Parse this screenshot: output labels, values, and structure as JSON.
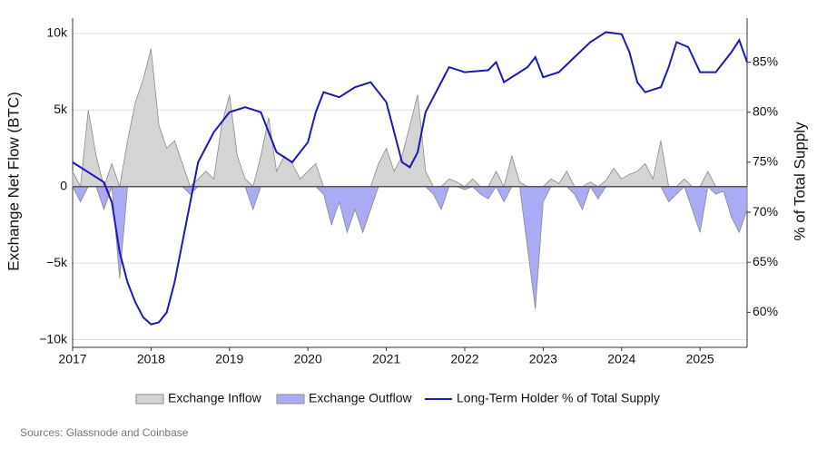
{
  "chart_data": {
    "type": "area-line",
    "y_label": "Exchange Net Flow (BTC)",
    "y2_label": "% of Total Supply",
    "source": "Sources: Glassnode and Coinbase",
    "xlim": [
      2017,
      2025.6
    ],
    "xticks": [
      2017,
      2018,
      2019,
      2020,
      2021,
      2022,
      2023,
      2024,
      2025
    ],
    "ylim": [
      -10500,
      11000
    ],
    "yticks": [
      {
        "value": -10000,
        "label": "−10k"
      },
      {
        "value": -5000,
        "label": "−5k"
      },
      0,
      {
        "value": 5000,
        "label": "5k"
      },
      {
        "value": 10000,
        "label": "10k"
      }
    ],
    "y2lim": [
      56.5,
      89.4
    ],
    "y2ticks": [
      {
        "value": 60,
        "label": "60%"
      },
      {
        "value": 65,
        "label": "65%"
      },
      {
        "value": 70,
        "label": "70%"
      },
      {
        "value": 75,
        "label": "75%"
      },
      {
        "value": 80,
        "label": "80%"
      },
      {
        "value": 85,
        "label": "85%"
      }
    ],
    "grid": true,
    "legend": "bottom",
    "x": [
      2017.0,
      2017.1,
      2017.2,
      2017.3,
      2017.4,
      2017.5,
      2017.6,
      2017.7,
      2017.8,
      2017.9,
      2018.0,
      2018.1,
      2018.2,
      2018.3,
      2018.4,
      2018.5,
      2018.6,
      2018.7,
      2018.8,
      2018.9,
      2019.0,
      2019.1,
      2019.2,
      2019.3,
      2019.4,
      2019.5,
      2019.6,
      2019.7,
      2019.8,
      2019.9,
      2020.0,
      2020.1,
      2020.2,
      2020.3,
      2020.4,
      2020.5,
      2020.6,
      2020.7,
      2020.8,
      2020.9,
      2021.0,
      2021.1,
      2021.2,
      2021.3,
      2021.4,
      2021.5,
      2021.6,
      2021.7,
      2021.8,
      2021.9,
      2022.0,
      2022.1,
      2022.2,
      2022.3,
      2022.4,
      2022.5,
      2022.6,
      2022.7,
      2022.8,
      2022.9,
      2023.0,
      2023.1,
      2023.2,
      2023.3,
      2023.4,
      2023.5,
      2023.6,
      2023.7,
      2023.8,
      2023.9,
      2024.0,
      2024.1,
      2024.2,
      2024.3,
      2024.4,
      2024.5,
      2024.6,
      2024.7,
      2024.8,
      2024.9,
      2025.0,
      2025.1,
      2025.2,
      2025.3,
      2025.4,
      2025.5,
      2025.6
    ],
    "series": [
      {
        "name": "Exchange Inflow",
        "kind": "area",
        "color": "#d4d4d4",
        "values": [
          1000,
          0,
          5000,
          2000,
          0,
          1500,
          0,
          3000,
          5500,
          7000,
          9000,
          4000,
          2500,
          3000,
          1500,
          0,
          500,
          1000,
          500,
          4000,
          6000,
          2000,
          500,
          0,
          2000,
          4500,
          1000,
          2000,
          1500,
          500,
          1000,
          1500,
          0,
          0,
          0,
          0,
          0,
          0,
          0,
          1500,
          2500,
          1000,
          2000,
          4000,
          6000,
          1000,
          0,
          0,
          500,
          300,
          0,
          500,
          0,
          0,
          1000,
          0,
          2000,
          300,
          0,
          0,
          0,
          500,
          200,
          1000,
          0,
          0,
          300,
          0,
          400,
          1200,
          500,
          800,
          1000,
          1500,
          500,
          3000,
          0,
          0,
          500,
          0,
          0,
          1000,
          0,
          0,
          0,
          0,
          0
        ]
      },
      {
        "name": "Exchange Outflow",
        "kind": "area",
        "color": "#aaaaf5",
        "values": [
          0,
          -1000,
          0,
          0,
          -1500,
          0,
          -6000,
          0,
          0,
          0,
          0,
          0,
          0,
          0,
          0,
          -500,
          0,
          0,
          0,
          0,
          0,
          0,
          0,
          -1500,
          0,
          0,
          0,
          0,
          0,
          0,
          0,
          0,
          -500,
          -2500,
          -1000,
          -3000,
          -1500,
          -3000,
          -1500,
          0,
          0,
          0,
          0,
          0,
          0,
          0,
          -500,
          -1500,
          0,
          0,
          -200,
          0,
          -500,
          -800,
          0,
          -1000,
          0,
          0,
          -4000,
          -8000,
          -1000,
          0,
          0,
          0,
          -500,
          -1500,
          0,
          -800,
          0,
          0,
          0,
          0,
          0,
          0,
          0,
          0,
          -1000,
          -500,
          0,
          -1500,
          -3000,
          0,
          -500,
          -300,
          -2000,
          -3000,
          -1500
        ]
      },
      {
        "name": "Long-Term Holder % of Total Supply",
        "kind": "line",
        "axis": "y2",
        "color": "#1a1ab4",
        "x": [
          2017.0,
          2017.2,
          2017.4,
          2017.5,
          2017.6,
          2017.7,
          2017.8,
          2017.9,
          2018.0,
          2018.1,
          2018.2,
          2018.3,
          2018.4,
          2018.5,
          2018.6,
          2018.8,
          2019.0,
          2019.2,
          2019.4,
          2019.5,
          2019.6,
          2019.8,
          2020.0,
          2020.1,
          2020.2,
          2020.4,
          2020.6,
          2020.8,
          2021.0,
          2021.1,
          2021.2,
          2021.3,
          2021.4,
          2021.5,
          2021.7,
          2021.8,
          2022.0,
          2022.3,
          2022.4,
          2022.5,
          2022.8,
          2022.9,
          2023.0,
          2023.2,
          2023.4,
          2023.6,
          2023.8,
          2024.0,
          2024.1,
          2024.2,
          2024.3,
          2024.5,
          2024.6,
          2024.7,
          2024.85,
          2025.0,
          2025.2,
          2025.4,
          2025.5,
          2025.6
        ],
        "values": [
          75,
          74,
          73,
          71,
          66,
          63,
          61,
          59.5,
          58.8,
          59,
          60,
          63,
          67,
          71,
          75,
          78,
          80,
          80.5,
          80,
          78,
          76,
          75,
          77,
          80,
          82,
          81.5,
          82.5,
          83,
          81,
          78,
          75,
          74.5,
          76,
          80,
          83,
          84.5,
          84,
          84.2,
          85,
          83,
          84.5,
          85.5,
          83.5,
          84,
          85.5,
          87,
          88,
          87.8,
          86,
          83,
          82,
          82.5,
          84.5,
          87,
          86.5,
          84,
          84,
          86,
          87.2,
          85
        ]
      }
    ]
  }
}
